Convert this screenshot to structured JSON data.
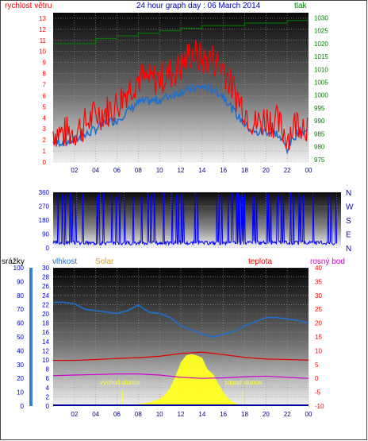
{
  "header": {
    "left_label": "rychlost větru",
    "title": "24 hour graph day : 06 March 2014",
    "right_label": "tlak"
  },
  "colors": {
    "wind_max": "#ff0000",
    "wind_avg": "#1e6fd0",
    "pressure": "#008000",
    "direction": "#0000ff",
    "rain": "#0000a0",
    "humidity": "#1e6fd0",
    "temperature": "#e00000",
    "dewpoint": "#d000d0",
    "solar": "#ffff20",
    "text_blue": "#0000c0",
    "text_red": "#ff0000",
    "text_green": "#008000"
  },
  "chart_data": [
    {
      "type": "line",
      "title": "24 hour graph day : 06 March 2014",
      "xlabel": "",
      "x_ticks": [
        "02",
        "04",
        "06",
        "08",
        "10",
        "12",
        "14",
        "16",
        "18",
        "20",
        "22",
        "00"
      ],
      "left_axis": {
        "label": "rychlost větru",
        "ticks": [
          0,
          1,
          2,
          3,
          4,
          5,
          6,
          7,
          8,
          9,
          10,
          11,
          12,
          13
        ],
        "ylim": [
          0,
          13.5
        ]
      },
      "right_axis": {
        "label": "tlak",
        "ticks": [
          975,
          980,
          985,
          990,
          995,
          1000,
          1005,
          1010,
          1015,
          1020,
          1025,
          1030
        ],
        "ylim": [
          974,
          1032
        ]
      },
      "series": [
        {
          "name": "rychlost větru",
          "axis": "left",
          "x": [
            0,
            1,
            2,
            3,
            4,
            5,
            6,
            7,
            8,
            9,
            10,
            11,
            12,
            13,
            14,
            15,
            16,
            17,
            18,
            19,
            20,
            21,
            22,
            23,
            24
          ],
          "values": [
            2.8,
            2.6,
            2.8,
            3.4,
            4.3,
            4.6,
            5.2,
            6.6,
            7.6,
            7.4,
            7.6,
            8.0,
            8.6,
            10.0,
            9.2,
            9.3,
            8.6,
            6.4,
            4.8,
            3.4,
            4.0,
            3.6,
            2.4,
            3.8,
            3.3
          ]
        },
        {
          "axis": "left",
          "x": [
            0,
            1,
            2,
            3,
            4,
            5,
            6,
            7,
            8,
            9,
            10,
            11,
            12,
            13,
            14,
            15,
            16,
            17,
            18,
            19,
            20,
            21,
            22,
            23,
            24
          ],
          "values": [
            1.8,
            1.8,
            2.0,
            2.4,
            3.0,
            3.6,
            3.8,
            4.6,
            5.4,
            5.5,
            5.6,
            6.0,
            6.4,
            6.6,
            6.8,
            6.6,
            6.0,
            4.6,
            3.4,
            2.6,
            2.8,
            2.6,
            1.2,
            2.8,
            2.8
          ]
        },
        {
          "name": "tlak",
          "axis": "right",
          "x": [
            0,
            2,
            4,
            6,
            8,
            10,
            12,
            14,
            16,
            18,
            20,
            22,
            24
          ],
          "values": [
            1020,
            1020,
            1022,
            1023,
            1024,
            1025,
            1026,
            1027,
            1027,
            1028,
            1028,
            1029,
            1029
          ]
        }
      ]
    },
    {
      "type": "scatter",
      "title": "",
      "x_ticks": [
        "02",
        "04",
        "06",
        "08",
        "10",
        "12",
        "14",
        "16",
        "18",
        "20",
        "22",
        "00"
      ],
      "left_axis": {
        "ticks": [
          0,
          90,
          180,
          270,
          360
        ],
        "ylim": [
          0,
          360
        ]
      },
      "right_labels": [
        "N",
        "W",
        "S",
        "E",
        "N"
      ],
      "series": [
        {
          "x": [
            0,
            2,
            4,
            6,
            8,
            10,
            12,
            14,
            16,
            18,
            20,
            22,
            24
          ],
          "values": [
            30,
            20,
            15,
            20,
            25,
            15,
            20,
            15,
            25,
            20,
            15,
            20,
            30
          ]
        }
      ]
    },
    {
      "type": "line",
      "x_ticks": [
        "02",
        "04",
        "06",
        "08",
        "10",
        "12",
        "14",
        "16",
        "18",
        "20",
        "22",
        "00"
      ],
      "left_axis_rain": {
        "label": "srážky",
        "ticks": [
          0,
          10,
          20,
          30,
          40,
          50,
          60,
          70,
          80,
          90,
          100
        ],
        "ylim": [
          0,
          100
        ]
      },
      "left_axis_2": {
        "label": "vlhkost",
        "ticks": [
          0,
          2,
          4,
          6,
          8,
          10,
          12,
          14,
          16,
          18,
          20,
          22,
          24,
          26,
          28,
          30
        ]
      },
      "right_axis": {
        "label": "teplota",
        "ticks": [
          -10,
          -5,
          0,
          5,
          10,
          15,
          20,
          25,
          30,
          35,
          40
        ],
        "ylim": [
          -10,
          40
        ]
      },
      "legend": [
        "srážky",
        "vlhkost",
        "Solar",
        "teplota",
        "rosný bod"
      ],
      "annotations": [
        "východ slunce",
        "západ slunce"
      ],
      "series": [
        {
          "name": "vlhkost",
          "x": [
            0,
            1,
            2,
            3,
            4,
            5,
            6,
            7,
            8,
            9,
            10,
            11,
            12,
            13,
            14,
            15,
            16,
            17,
            18,
            19,
            20,
            21,
            22,
            23,
            24
          ],
          "values": [
            75,
            75,
            74,
            70,
            69,
            68,
            67,
            69,
            73,
            68,
            67,
            64,
            58,
            55,
            52,
            50,
            52,
            54,
            58,
            61,
            64,
            64,
            63,
            62,
            60
          ]
        },
        {
          "name": "teplota",
          "x": [
            0,
            2,
            4,
            6,
            8,
            10,
            12,
            14,
            16,
            18,
            20,
            22,
            24
          ],
          "values": [
            6.5,
            6.5,
            6.8,
            7.2,
            7.5,
            8.0,
            9.0,
            9.5,
            8.6,
            7.6,
            7.0,
            6.8,
            6.6
          ]
        },
        {
          "name": "rosný bod",
          "x": [
            0,
            2,
            4,
            6,
            8,
            10,
            12,
            14,
            16,
            18,
            20,
            22,
            24
          ],
          "values": [
            1.0,
            1.2,
            1.4,
            1.6,
            1.6,
            1.2,
            0.4,
            0.0,
            0.2,
            0.6,
            0.8,
            0.4,
            0.0
          ]
        },
        {
          "name": "Solar",
          "x": [
            6.5,
            7,
            8,
            9,
            10,
            10.5,
            11,
            11.5,
            12,
            12.5,
            13,
            13.5,
            14,
            14.5,
            15,
            15.5,
            16,
            16.5,
            17,
            17.5,
            18
          ],
          "values": [
            0,
            0.2,
            0.4,
            0.8,
            1.5,
            2.4,
            4.0,
            6.5,
            9.5,
            11.0,
            11.3,
            11.0,
            10.5,
            8.0,
            7.0,
            5.0,
            3.0,
            1.5,
            0.8,
            0.3,
            0
          ]
        }
      ]
    }
  ]
}
